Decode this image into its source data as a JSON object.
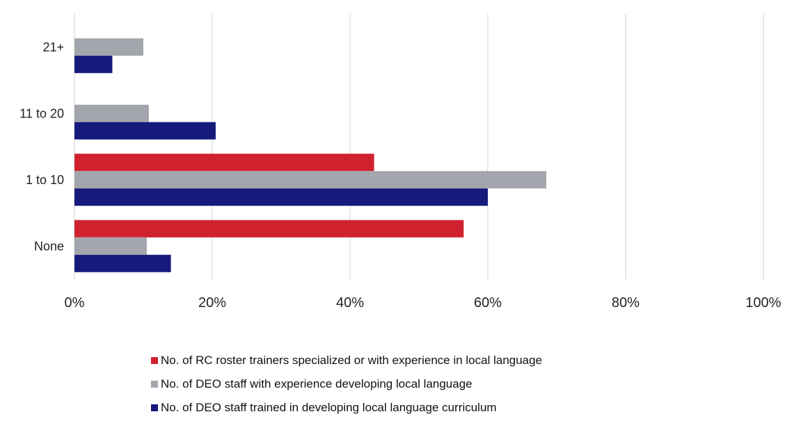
{
  "chart_data": {
    "type": "bar",
    "orientation": "horizontal",
    "categories": [
      "21+",
      "11 to 20",
      "1 to 10",
      "None"
    ],
    "series": [
      {
        "name": "No. of RC roster trainers specialized or with experience in local language",
        "color": "#d0222e",
        "values": [
          null,
          null,
          43.5,
          56.5
        ]
      },
      {
        "name": "No. of DEO staff with experience developing local language",
        "color": "#a4a6ad",
        "values": [
          10,
          10.8,
          68.5,
          10.5
        ]
      },
      {
        "name": "No. of DEO staff trained in developing local language curriculum",
        "color": "#161a7b",
        "values": [
          5.5,
          20.5,
          60,
          14
        ]
      }
    ],
    "xlim": [
      0,
      100
    ],
    "x_ticks": [
      "0%",
      "20%",
      "40%",
      "60%",
      "80%",
      "100%"
    ],
    "grid": true,
    "legend_position": "bottom",
    "title": "",
    "xlabel": "",
    "ylabel": ""
  }
}
